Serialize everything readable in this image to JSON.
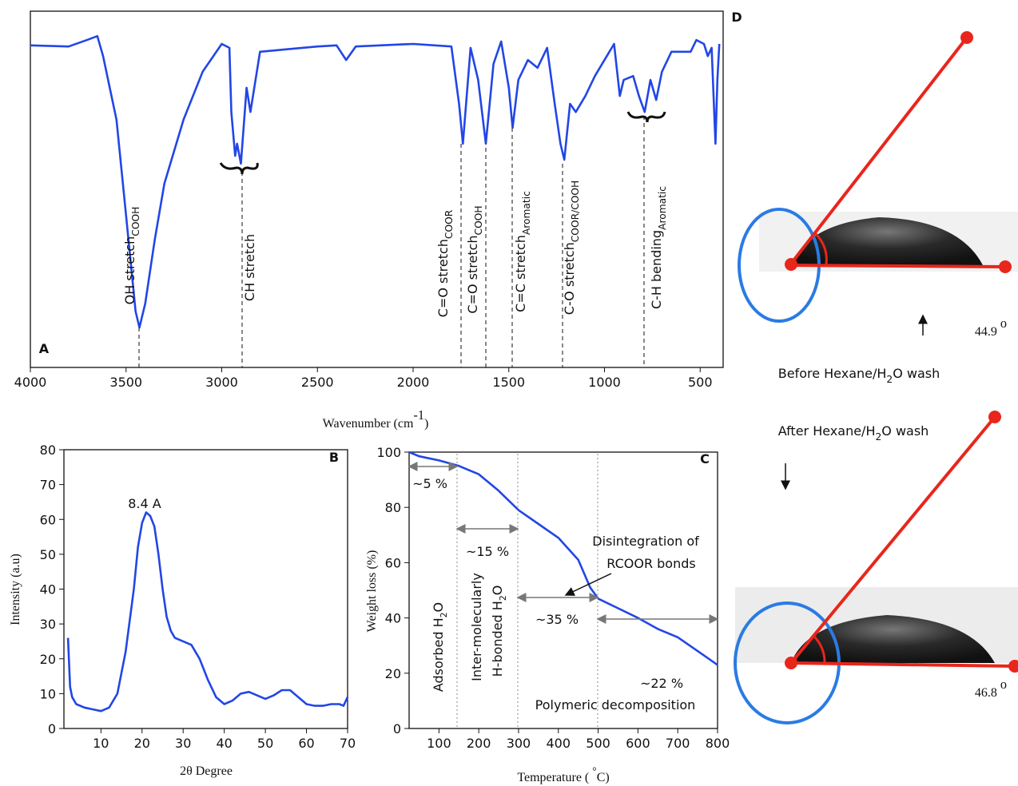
{
  "chart_data": [
    {
      "type": "line",
      "panel": "A",
      "xlabel": {
        "text": "Wavenumber (cm",
        "sup": "-1",
        "tail": ")"
      },
      "x": [
        4000,
        3800,
        3700,
        3650,
        3620,
        3550,
        3500,
        3450,
        3430,
        3400,
        3350,
        3300,
        3200,
        3100,
        3000,
        2960,
        2950,
        2930,
        2920,
        2900,
        2870,
        2850,
        2800,
        2500,
        2400,
        2350,
        2300,
        2000,
        1800,
        1760,
        1740,
        1700,
        1660,
        1620,
        1580,
        1540,
        1500,
        1480,
        1450,
        1400,
        1350,
        1300,
        1260,
        1230,
        1210,
        1180,
        1150,
        1100,
        1050,
        1000,
        950,
        920,
        900,
        850,
        820,
        790,
        760,
        730,
        700,
        650,
        550,
        520,
        480,
        460,
        440,
        420,
        410,
        400
      ],
      "values": [
        90.4,
        90.1,
        92,
        93,
        87.4,
        69.5,
        42.6,
        15.7,
        11.2,
        17.9,
        35.9,
        51.6,
        69.5,
        83,
        90.8,
        89.7,
        71.7,
        59.4,
        62.8,
        57.2,
        78.5,
        71.7,
        88.6,
        90.1,
        90.4,
        86.3,
        90.1,
        90.8,
        90.1,
        74,
        62.8,
        89.7,
        80.7,
        62.8,
        85.2,
        91.5,
        78.5,
        67.3,
        80.7,
        86.3,
        84.1,
        89.7,
        74,
        62.8,
        58.3,
        74,
        71.7,
        76.2,
        81.8,
        86.3,
        90.8,
        76.2,
        80.7,
        81.8,
        76.2,
        71.7,
        80.7,
        75.1,
        83,
        88.6,
        88.6,
        91.9,
        90.8,
        87.4,
        89.7,
        62.8,
        80.7,
        90.8
      ],
      "color": "#2246e6",
      "xlim": [
        4000,
        380
      ],
      "ylim": [
        0,
        100
      ],
      "xticks": [
        4000,
        3500,
        3000,
        2500,
        2000,
        1500,
        1000,
        500
      ],
      "annotations": [
        {
          "text": "OH stretch",
          "sub": "COOH"
        },
        "CH stretch",
        {
          "text": "C=O stretch",
          "sub": "COOR"
        },
        {
          "text": "C=O stretch",
          "sub": "COOH"
        },
        {
          "text": "C=C stretch",
          "sub": "Aromatic"
        },
        {
          "text": "C-O stretch",
          "sub": "COOR/COOH"
        },
        {
          "text": "C-H bending",
          "sub": "Aromatic"
        }
      ]
    },
    {
      "type": "line",
      "panel": "B",
      "xlabel": "2θ Degree",
      "ylabel": "Intensity (a.u)",
      "x": [
        2,
        2.5,
        3,
        4,
        6,
        8,
        10,
        12,
        14,
        16,
        18,
        19,
        20,
        21,
        22,
        23,
        24,
        25,
        26,
        27,
        28,
        30,
        32,
        34,
        36,
        38,
        40,
        42,
        44,
        46,
        48,
        50,
        52,
        54,
        56,
        58,
        60,
        62,
        64,
        66,
        68,
        69,
        70
      ],
      "values": [
        26,
        12,
        9,
        7,
        6,
        5.5,
        5,
        6,
        10,
        22,
        40,
        52,
        59,
        62,
        61,
        58,
        50,
        40,
        32,
        28,
        26,
        25,
        24,
        20,
        14,
        9,
        7,
        8,
        10,
        10.5,
        9.5,
        8.5,
        9.5,
        11,
        11,
        9,
        7,
        6.5,
        6.5,
        7,
        7,
        6.5,
        9
      ],
      "color": "#2246e6",
      "xlim": [
        1,
        70
      ],
      "ylim": [
        0,
        80
      ],
      "xticks": [
        10,
        20,
        30,
        40,
        50,
        60,
        70
      ],
      "yticks": [
        0,
        10,
        20,
        30,
        40,
        50,
        60,
        70,
        80
      ],
      "annotations": [
        "8.4 A"
      ]
    },
    {
      "type": "line",
      "panel": "C",
      "xlabel": {
        "text": "Temperature ( ",
        "sup": "°",
        "tail": "C)"
      },
      "ylabel": "Weight loss (%)",
      "x": [
        25,
        50,
        100,
        150,
        200,
        250,
        300,
        350,
        400,
        450,
        480,
        500,
        550,
        600,
        650,
        700,
        750,
        800
      ],
      "values": [
        100,
        98.5,
        97,
        95,
        92,
        86,
        79,
        74,
        69,
        61,
        51,
        47,
        43.5,
        40,
        36,
        33,
        28,
        23
      ],
      "color": "#2246e6",
      "xlim": [
        25,
        800
      ],
      "ylim": [
        0,
        100
      ],
      "xticks": [
        100,
        200,
        300,
        400,
        500,
        600,
        700,
        800
      ],
      "yticks": [
        0,
        20,
        40,
        60,
        80,
        100
      ],
      "annotations": [
        "~5 %",
        "~15 %",
        "~35 %",
        "~22 %",
        "Disintegration of",
        "RCOOR bonds",
        {
          "text": "Adsorbed H",
          "sub": "2",
          "tail": "O"
        },
        "Inter-molecularly",
        {
          "text": "H-bonded H",
          "sub": "2",
          "tail": "O"
        },
        "Polymeric decomposition"
      ]
    }
  ],
  "panel_d": {
    "label": "D",
    "before": {
      "angle": {
        "text": "44.9 ",
        "sup": "o"
      },
      "caption": {
        "text": "Before Hexane/H",
        "sub": "2",
        "tail": "O wash"
      }
    },
    "after": {
      "angle": {
        "text": "46.8 ",
        "sup": "o"
      },
      "caption": {
        "text": "After Hexane/H",
        "sub": "2",
        "tail": "O wash"
      }
    }
  }
}
